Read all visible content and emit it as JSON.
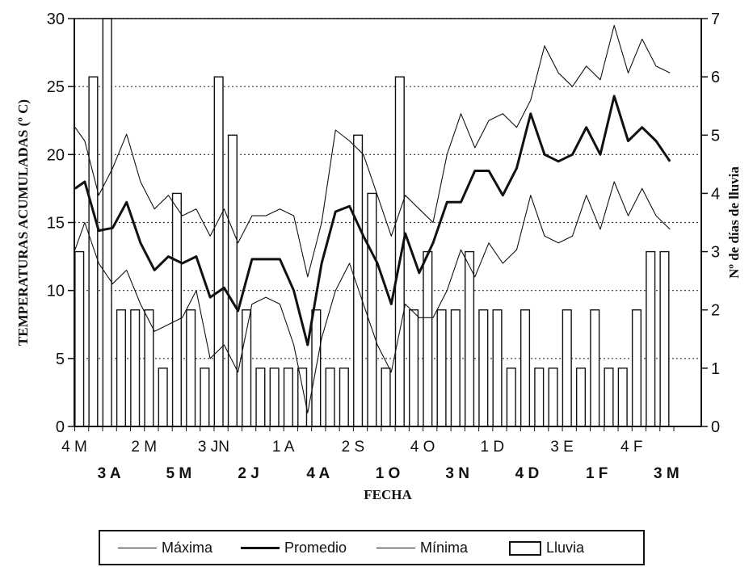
{
  "chart_data": {
    "type": "bar+line",
    "ylabel_left": "TEMPERATURAS ACUMULADAS (º C)",
    "ylabel_right": "Nº de días de lluvia",
    "xlabel": "FECHA",
    "ylim_left": [
      0,
      30
    ],
    "ylim_right": [
      0,
      7
    ],
    "yticks_left": [
      "0",
      "5",
      "10",
      "15",
      "20",
      "25",
      "30"
    ],
    "yticks_right": [
      "0",
      "1",
      "2",
      "3",
      "4",
      "5",
      "6",
      "7"
    ],
    "grid": "horizontal dotted",
    "xticks_row1": [
      "4 M",
      "2 M",
      "3 JN",
      "1 A",
      "2 S",
      "4 O",
      "1 D",
      "3 E",
      "4 F"
    ],
    "xticks_row2": [
      "3 A",
      "5 M",
      "2 J",
      "4 A",
      "1 O",
      "3 N",
      "4 D",
      "1 F",
      "3 M"
    ],
    "rain_days": [
      3,
      6,
      7,
      2,
      2,
      2,
      1,
      4,
      2,
      1,
      6,
      5,
      2,
      1,
      1,
      1,
      1,
      2,
      1,
      1,
      5,
      4,
      1,
      6,
      2,
      3,
      2,
      2,
      3,
      2,
      2,
      1,
      2,
      1,
      1,
      2,
      1,
      2,
      1,
      1,
      2,
      3,
      3
    ],
    "series": [
      {
        "name": "Máxima",
        "x": [
          0,
          0.7,
          1.7,
          2.7,
          3.7,
          4.7,
          5.7,
          6.7,
          7.7,
          8.7,
          9.7,
          10.7,
          11.7,
          12.7,
          13.7,
          14.7,
          15.7,
          16.7,
          17.7,
          18.7,
          19.7,
          20.7,
          21.7,
          22.7,
          23.7,
          24.7,
          25.7,
          26.7,
          27.7,
          28.7,
          29.7,
          30.7,
          31.7,
          32.7,
          33.7,
          34.7,
          35.7,
          36.7,
          37.7,
          38.7,
          39.7,
          40.7,
          41.7,
          42.7
        ],
        "y": [
          22,
          21,
          17,
          19,
          21.5,
          18,
          16,
          17,
          15.5,
          16,
          14,
          16,
          13.5,
          15.5,
          15.5,
          16,
          15.5,
          11,
          15,
          21.8,
          21,
          20,
          17,
          14,
          17,
          16,
          15,
          20,
          23,
          20.5,
          22.5,
          23,
          22,
          24,
          28,
          26,
          25,
          26.5,
          25.5,
          29.5,
          26,
          28.5,
          26.5,
          26
        ]
      },
      {
        "name": "Promedio",
        "x": [
          0,
          0.7,
          1.7,
          2.7,
          3.7,
          4.7,
          5.7,
          6.7,
          7.7,
          8.7,
          9.7,
          10.7,
          11.7,
          12.7,
          13.7,
          14.7,
          15.7,
          16.7,
          17.7,
          18.7,
          19.7,
          20.7,
          21.7,
          22.7,
          23.7,
          24.7,
          25.7,
          26.7,
          27.7,
          28.7,
          29.7,
          30.7,
          31.7,
          32.7,
          33.7,
          34.7,
          35.7,
          36.7,
          37.7,
          38.7,
          39.7,
          40.7,
          41.7,
          42.7
        ],
        "y": [
          17.5,
          18,
          14.4,
          14.6,
          16.5,
          13.5,
          11.5,
          12.5,
          12,
          12.5,
          9.5,
          10.2,
          8.5,
          12.3,
          12.3,
          12.3,
          10,
          6,
          12,
          15.8,
          16.2,
          14,
          12,
          9,
          14.2,
          11.3,
          13.5,
          16.5,
          16.5,
          18.8,
          18.8,
          17,
          19,
          23,
          20,
          19.5,
          20,
          22,
          20,
          24.3,
          21,
          22,
          21,
          19.5
        ]
      },
      {
        "name": "Mínima",
        "x": [
          0,
          0.7,
          1.7,
          2.7,
          3.7,
          4.7,
          5.7,
          6.7,
          7.7,
          8.7,
          9.7,
          10.7,
          11.7,
          12.7,
          13.7,
          14.7,
          15.7,
          16.7,
          17.7,
          18.7,
          19.7,
          20.7,
          21.7,
          22.7,
          23.7,
          24.7,
          25.7,
          26.7,
          27.7,
          28.7,
          29.7,
          30.7,
          31.7,
          32.7,
          33.7,
          34.7,
          35.7,
          36.7,
          37.7,
          38.7,
          39.7,
          40.7,
          41.7,
          42.7
        ],
        "y": [
          13,
          15,
          12,
          10.5,
          11.5,
          9,
          7,
          7.5,
          8,
          10,
          5,
          6,
          4,
          9,
          9.5,
          9,
          6,
          1,
          6.5,
          10,
          12,
          9,
          6,
          4,
          9,
          8,
          8,
          10,
          13,
          11,
          13.5,
          12,
          13,
          17,
          14,
          13.5,
          14,
          17,
          14.5,
          18,
          15.5,
          17.5,
          15.5,
          14.5
        ]
      }
    ]
  },
  "legend": {
    "maxima": "Máxima",
    "promedio": "Promedio",
    "minima": "Mínima",
    "lluvia": "Lluvia"
  }
}
